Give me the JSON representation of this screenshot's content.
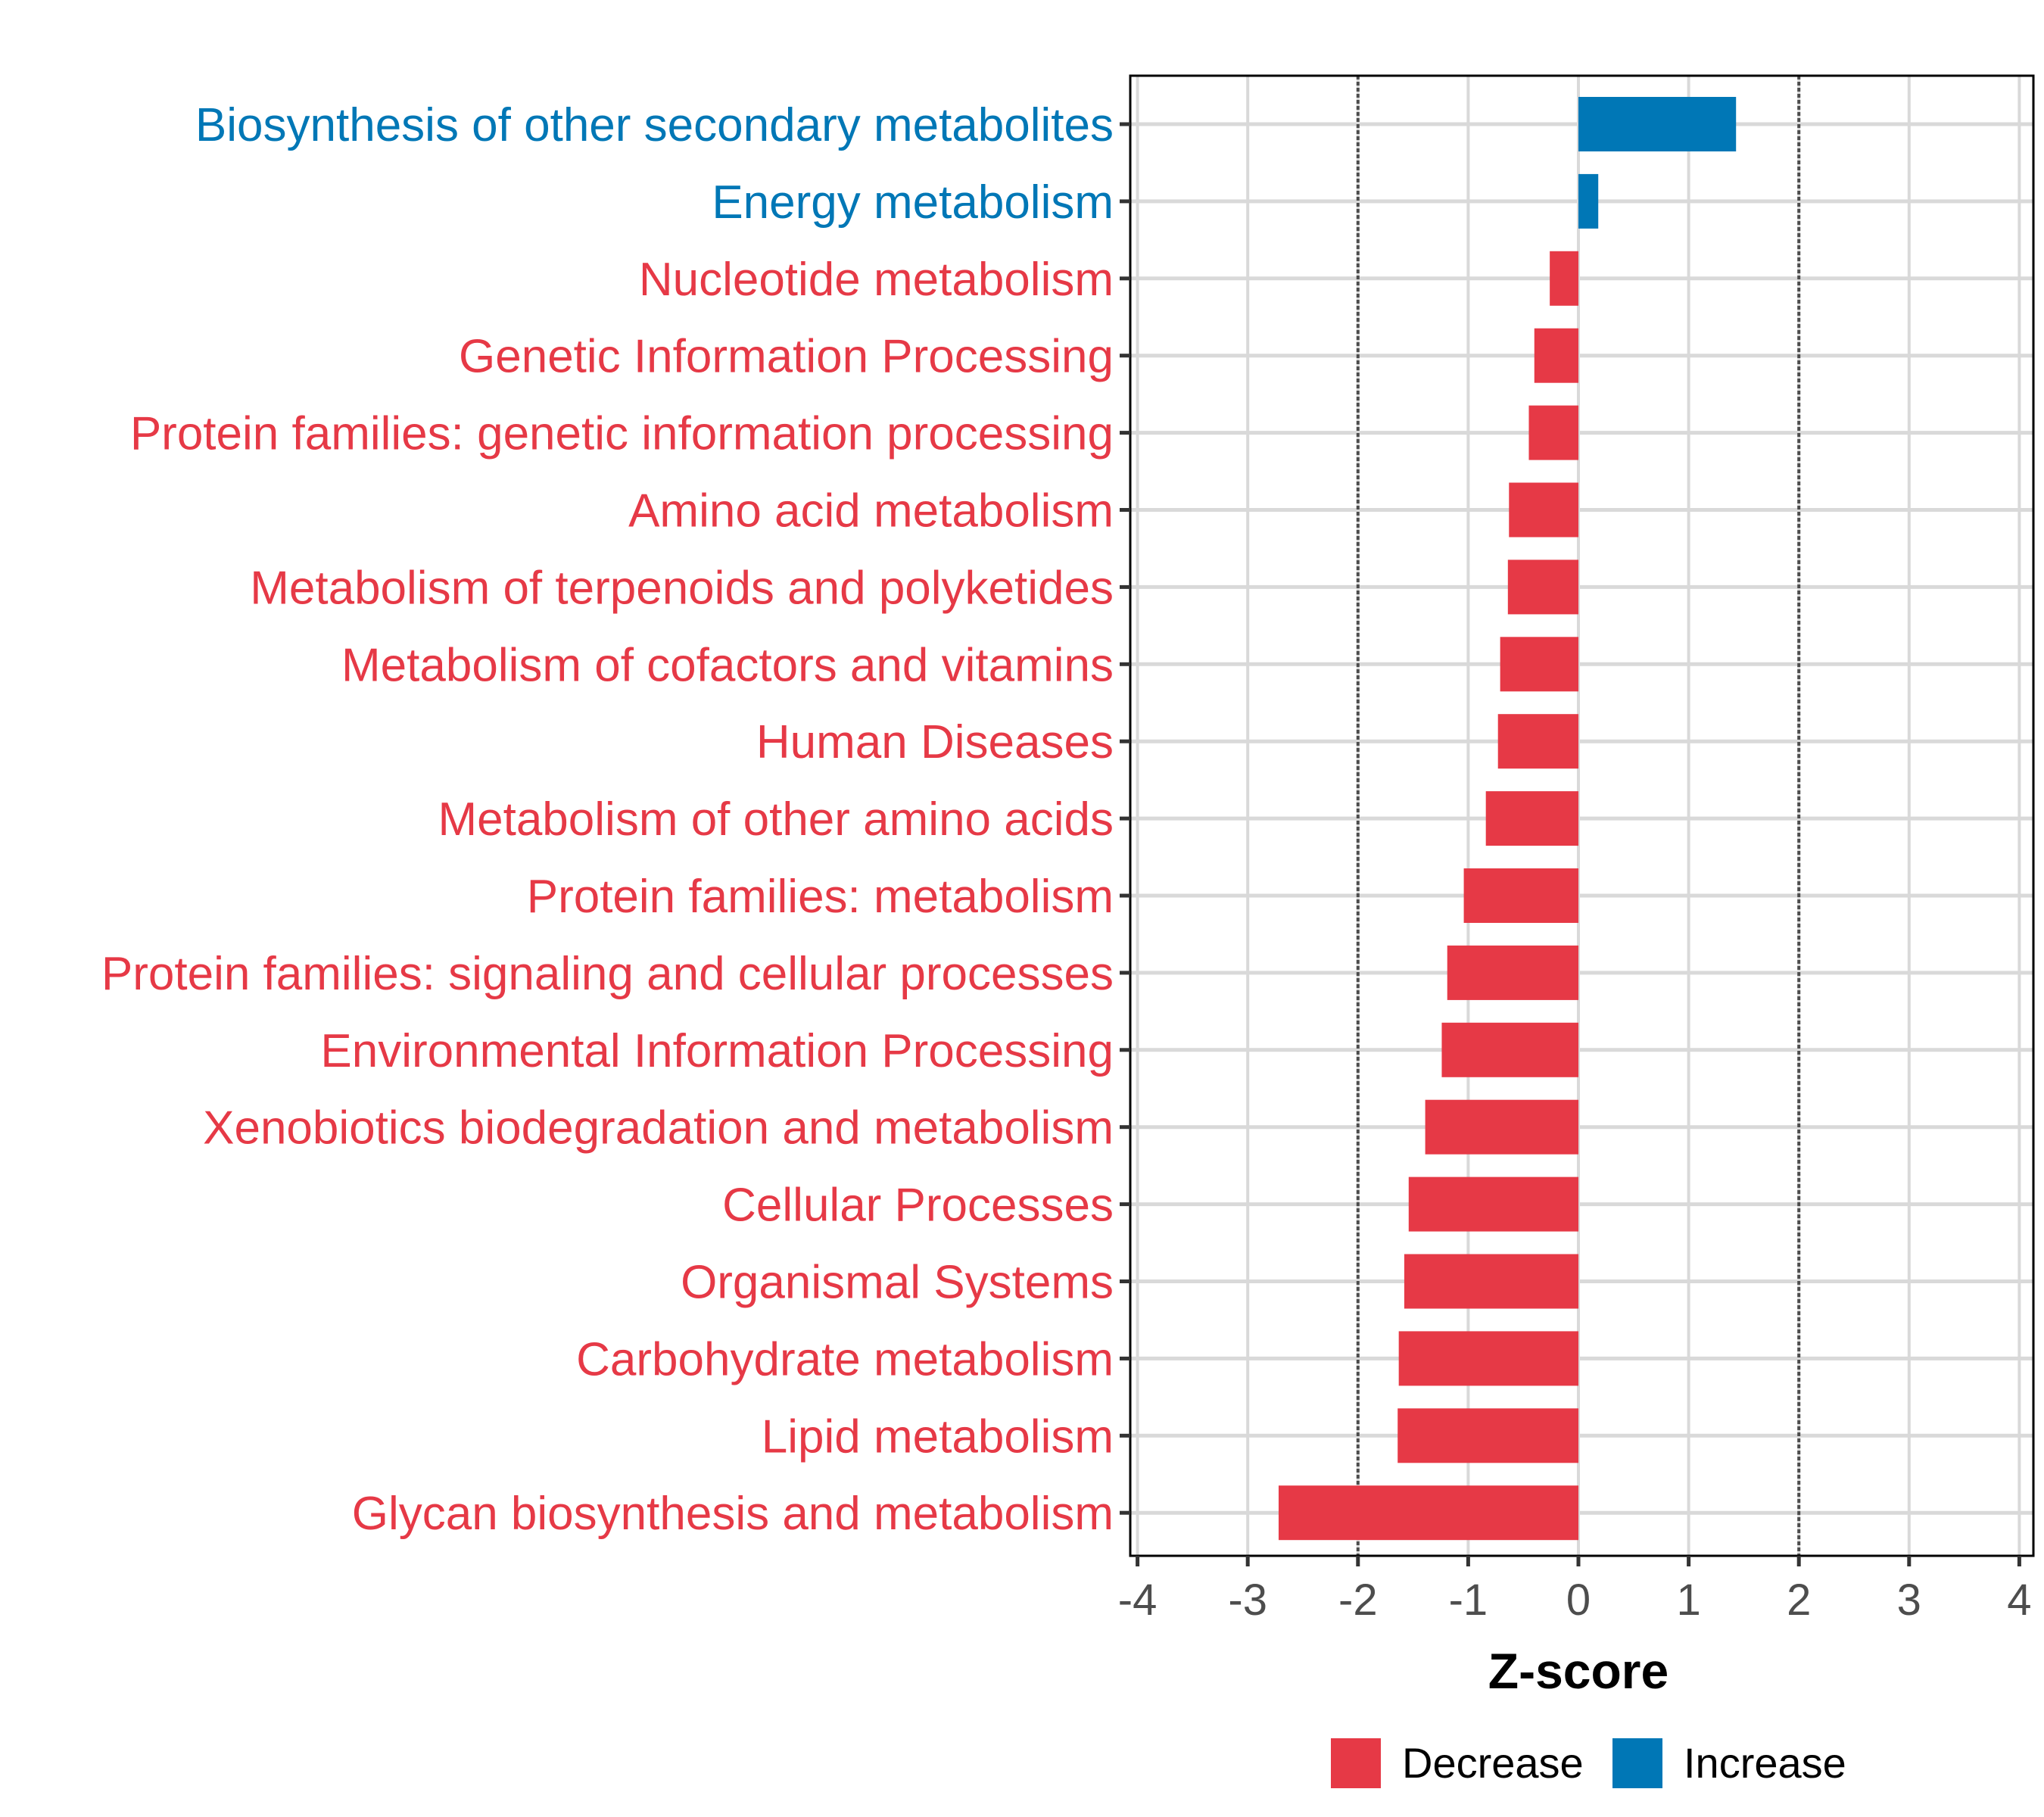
{
  "chart_data": {
    "type": "bar",
    "orientation": "horizontal",
    "title": "",
    "xlabel": "Z-score",
    "ylabel": "",
    "xlim": [
      -4,
      4
    ],
    "xticks": [
      -4,
      -3,
      -2,
      -1,
      0,
      1,
      2,
      3,
      4
    ],
    "xtick_labels": [
      "-4",
      "-3",
      "-2",
      "-1",
      "0",
      "1",
      "2",
      "3",
      "4"
    ],
    "reference_lines": [
      -2,
      2
    ],
    "grid": true,
    "legend_position": "bottom",
    "legend": [
      {
        "label": "Decrease",
        "color": "#E63946"
      },
      {
        "label": "Increase",
        "color": "#0077B6"
      }
    ],
    "categories": [
      "Biosynthesis of other secondary metabolites",
      "Energy metabolism",
      "Nucleotide metabolism",
      "Genetic Information Processing",
      "Protein families: genetic information processing",
      "Amino acid metabolism",
      "Metabolism of terpenoids and polyketides",
      "Metabolism of cofactors and vitamins",
      "Human Diseases",
      "Metabolism of other amino acids",
      "Protein families: metabolism",
      "Protein families: signaling and cellular processes",
      "Environmental Information Processing",
      "Xenobiotics biodegradation and metabolism",
      "Cellular Processes",
      "Organismal Systems",
      "Carbohydrate metabolism",
      "Lipid metabolism",
      "Glycan biosynthesis and metabolism"
    ],
    "values": [
      1.43,
      0.18,
      -0.26,
      -0.4,
      -0.45,
      -0.63,
      -0.64,
      -0.71,
      -0.73,
      -0.84,
      -1.04,
      -1.19,
      -1.24,
      -1.39,
      -1.54,
      -1.58,
      -1.63,
      -1.64,
      -2.72
    ],
    "groups": [
      "Increase",
      "Increase",
      "Decrease",
      "Decrease",
      "Decrease",
      "Decrease",
      "Decrease",
      "Decrease",
      "Decrease",
      "Decrease",
      "Decrease",
      "Decrease",
      "Decrease",
      "Decrease",
      "Decrease",
      "Decrease",
      "Decrease",
      "Decrease",
      "Decrease"
    ]
  }
}
